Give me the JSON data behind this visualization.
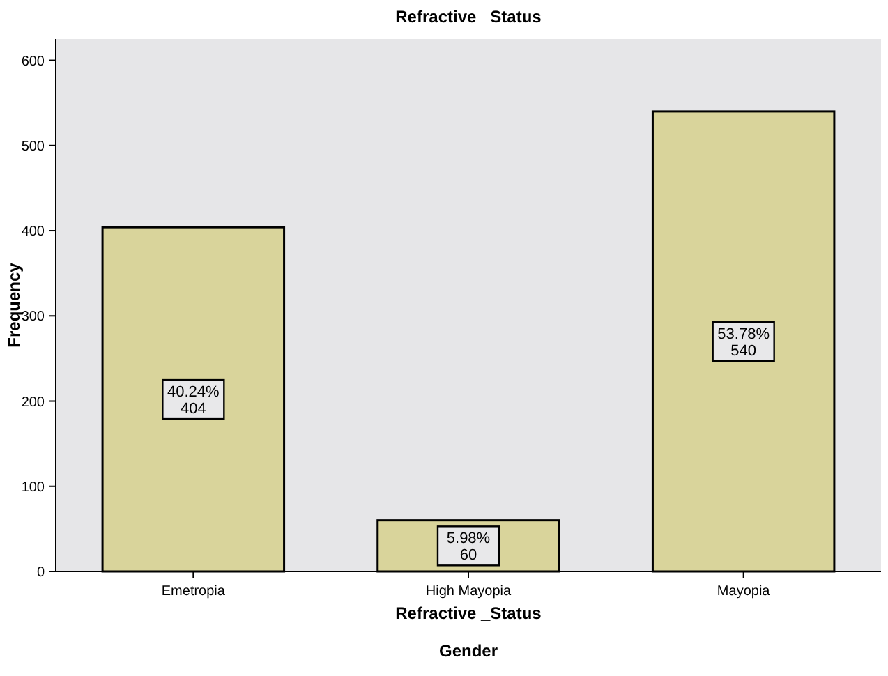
{
  "chart_data": {
    "type": "bar",
    "title": "Refractive _Status",
    "xlabel": "Refractive _Status",
    "ylabel": "Frequency",
    "categories": [
      "Emetropia",
      "High Mayopia",
      "Mayopia"
    ],
    "values": [
      404,
      60,
      540
    ],
    "color": "#d9d49b",
    "value_labels": [
      "40.24%\n404",
      "5.98%\n60",
      "53.78%\n540"
    ],
    "ylim": [
      0,
      625
    ],
    "yticks": [
      0,
      100,
      200,
      300,
      400,
      500,
      600
    ],
    "annotations": [
      "Gender"
    ]
  }
}
